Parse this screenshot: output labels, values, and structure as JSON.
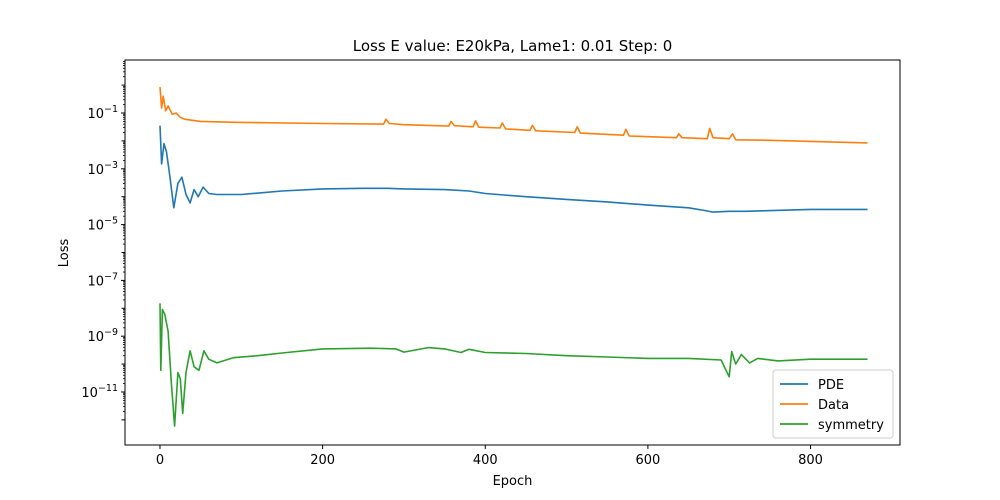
{
  "chart_data": {
    "type": "line",
    "title": "Loss E value: E20kPa, Lame1: 0.01 Step: 0",
    "xlabel": "Epoch",
    "ylabel": "Loss",
    "yscale": "log",
    "xlim": [
      -43,
      910
    ],
    "ylim_log10": [
      -12.9,
      0.9
    ],
    "x_ticks": [
      0,
      200,
      400,
      600,
      800
    ],
    "x_tick_labels": [
      "0",
      "200",
      "400",
      "600",
      "800"
    ],
    "y_ticks_log10": [
      -1,
      -3,
      -5,
      -7,
      -9,
      -11
    ],
    "y_tick_labels": [
      "10",
      "10",
      "10",
      "10",
      "10",
      "10"
    ],
    "y_tick_exponents": [
      "−1",
      "−3",
      "−5",
      "−7",
      "−9",
      "−11"
    ],
    "grid": false,
    "legend_position": "bottom-right",
    "series": [
      {
        "name": "PDE",
        "color": "#1f77b4",
        "points": [
          [
            0,
            0.035
          ],
          [
            2,
            0.0015
          ],
          [
            5,
            0.008
          ],
          [
            8,
            0.004
          ],
          [
            12,
            0.0006
          ],
          [
            17,
            4e-05
          ],
          [
            22,
            0.0003
          ],
          [
            27,
            0.0005
          ],
          [
            32,
            0.00012
          ],
          [
            37,
            6e-05
          ],
          [
            42,
            0.00018
          ],
          [
            47,
            0.0001
          ],
          [
            53,
            0.00022
          ],
          [
            60,
            0.00013
          ],
          [
            70,
            0.00012
          ],
          [
            100,
            0.00012
          ],
          [
            150,
            0.00016
          ],
          [
            200,
            0.00019
          ],
          [
            250,
            0.0002
          ],
          [
            280,
            0.0002
          ],
          [
            300,
            0.00019
          ],
          [
            350,
            0.00018
          ],
          [
            380,
            0.00016
          ],
          [
            400,
            0.00013
          ],
          [
            450,
            0.0001
          ],
          [
            500,
            8e-05
          ],
          [
            550,
            6.5e-05
          ],
          [
            600,
            5e-05
          ],
          [
            650,
            4e-05
          ],
          [
            670,
            3.2e-05
          ],
          [
            680,
            2.8e-05
          ],
          [
            700,
            3e-05
          ],
          [
            720,
            3e-05
          ],
          [
            800,
            3.5e-05
          ],
          [
            870,
            3.5e-05
          ]
        ]
      },
      {
        "name": "Data",
        "color": "#ff7f0e",
        "points": [
          [
            0,
            0.85
          ],
          [
            2,
            0.15
          ],
          [
            4,
            0.4
          ],
          [
            7,
            0.12
          ],
          [
            10,
            0.18
          ],
          [
            15,
            0.09
          ],
          [
            20,
            0.1
          ],
          [
            25,
            0.07
          ],
          [
            30,
            0.06
          ],
          [
            50,
            0.05
          ],
          [
            100,
            0.046
          ],
          [
            200,
            0.042
          ],
          [
            275,
            0.04
          ],
          [
            278,
            0.06
          ],
          [
            282,
            0.042
          ],
          [
            300,
            0.038
          ],
          [
            355,
            0.034
          ],
          [
            358,
            0.05
          ],
          [
            362,
            0.035
          ],
          [
            385,
            0.032
          ],
          [
            388,
            0.052
          ],
          [
            392,
            0.031
          ],
          [
            418,
            0.029
          ],
          [
            421,
            0.044
          ],
          [
            425,
            0.027
          ],
          [
            455,
            0.024
          ],
          [
            458,
            0.036
          ],
          [
            462,
            0.023
          ],
          [
            510,
            0.02
          ],
          [
            513,
            0.032
          ],
          [
            517,
            0.019
          ],
          [
            570,
            0.016
          ],
          [
            573,
            0.026
          ],
          [
            577,
            0.015
          ],
          [
            635,
            0.013
          ],
          [
            638,
            0.018
          ],
          [
            642,
            0.013
          ],
          [
            673,
            0.012
          ],
          [
            676,
            0.028
          ],
          [
            680,
            0.013
          ],
          [
            700,
            0.012
          ],
          [
            704,
            0.018
          ],
          [
            708,
            0.011
          ],
          [
            750,
            0.0105
          ],
          [
            870,
            0.0085
          ]
        ]
      },
      {
        "name": "symmetry",
        "color": "#2ca02c",
        "points": [
          [
            0,
            1.5e-08
          ],
          [
            1,
            6e-11
          ],
          [
            3,
            9e-09
          ],
          [
            6,
            6e-09
          ],
          [
            10,
            1.5e-09
          ],
          [
            14,
            2e-11
          ],
          [
            18,
            6e-13
          ],
          [
            22,
            5e-11
          ],
          [
            25,
            3e-11
          ],
          [
            28,
            1.7e-12
          ],
          [
            32,
            5e-11
          ],
          [
            37,
            3e-10
          ],
          [
            42,
            8e-11
          ],
          [
            48,
            6e-11
          ],
          [
            54,
            3e-10
          ],
          [
            60,
            1.5e-10
          ],
          [
            70,
            1.1e-10
          ],
          [
            90,
            1.7e-10
          ],
          [
            120,
            2e-10
          ],
          [
            150,
            2.5e-10
          ],
          [
            200,
            3.5e-10
          ],
          [
            260,
            3.7e-10
          ],
          [
            290,
            3.5e-10
          ],
          [
            300,
            2.7e-10
          ],
          [
            330,
            3.9e-10
          ],
          [
            350,
            3.5e-10
          ],
          [
            370,
            2.6e-10
          ],
          [
            380,
            3.4e-10
          ],
          [
            400,
            2.6e-10
          ],
          [
            450,
            2.4e-10
          ],
          [
            500,
            2e-10
          ],
          [
            550,
            1.8e-10
          ],
          [
            600,
            1.6e-10
          ],
          [
            650,
            1.6e-10
          ],
          [
            690,
            1.4e-10
          ],
          [
            700,
            3.5e-11
          ],
          [
            703,
            2.8e-10
          ],
          [
            708,
            1e-10
          ],
          [
            715,
            2.2e-10
          ],
          [
            725,
            1.1e-10
          ],
          [
            735,
            1.6e-10
          ],
          [
            760,
            1.3e-10
          ],
          [
            800,
            1.5e-10
          ],
          [
            870,
            1.5e-10
          ]
        ]
      }
    ]
  }
}
